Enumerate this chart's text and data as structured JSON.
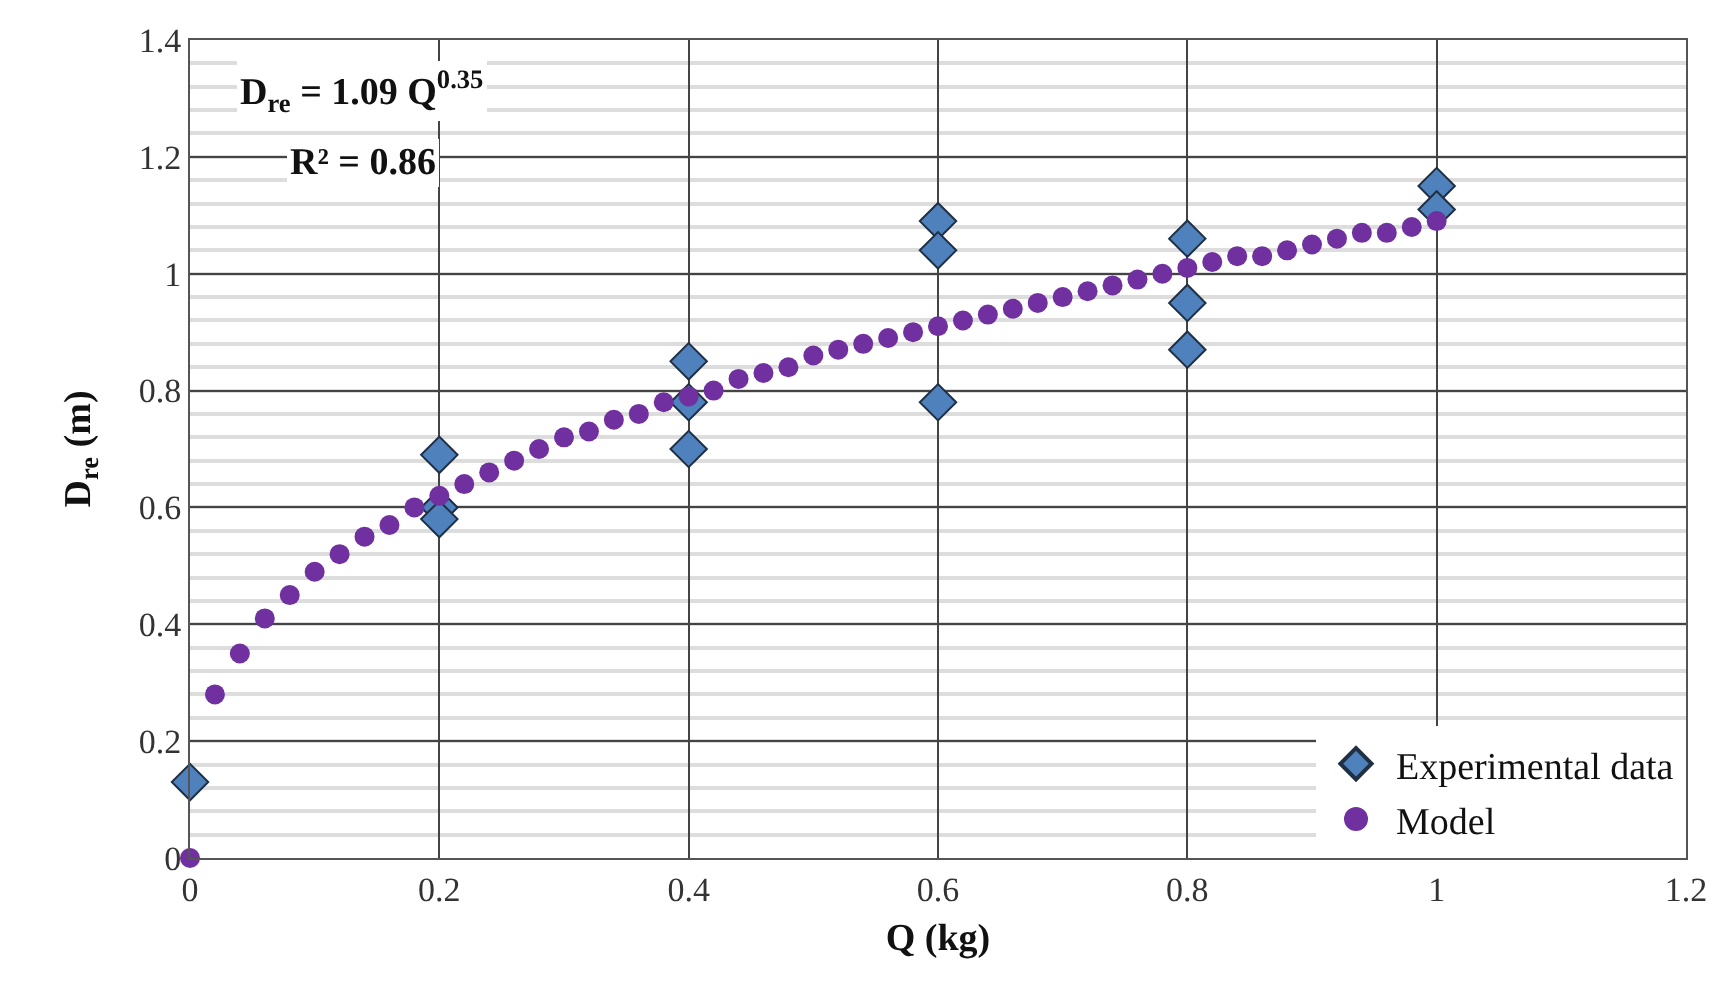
{
  "chart_data": {
    "type": "scatter",
    "xlabel": "Q (kg)",
    "ylabel": "D$_{re}$ (m)",
    "annotations": [
      "D$_{re}$ = 1.09 Q$^{0.35}$",
      "R² = 0.86"
    ],
    "xlim": [
      0,
      1.2
    ],
    "xticks": [
      0,
      0.2,
      0.4,
      0.6,
      0.8,
      1,
      1.2
    ],
    "ylim": [
      0,
      1.4
    ],
    "yticks": [
      0,
      0.2,
      0.4,
      0.6,
      0.8,
      1,
      1.2,
      1.4
    ],
    "grid": true,
    "legend": "bottom right",
    "series": [
      {
        "name": "Experimental data",
        "color": "#4f81bd",
        "marker": "diamond",
        "x": [
          0,
          0.2,
          0.2,
          0.2,
          0.4,
          0.4,
          0.4,
          0.6,
          0.6,
          0.6,
          0.8,
          0.8,
          0.8,
          1,
          1
        ],
        "values": [
          0.13,
          0.69,
          0.6,
          0.58,
          0.85,
          0.78,
          0.7,
          1.09,
          1.04,
          0.78,
          1.06,
          0.95,
          0.87,
          1.15,
          1.11
        ]
      },
      {
        "name": "Model",
        "color": "#7030a0",
        "marker": "circle",
        "x": [
          0,
          0.02,
          0.04,
          0.06,
          0.08,
          0.1,
          0.12,
          0.14,
          0.16,
          0.18,
          0.2,
          0.22,
          0.24,
          0.26,
          0.28,
          0.3,
          0.32,
          0.34,
          0.36,
          0.38,
          0.4,
          0.42,
          0.44,
          0.46,
          0.48,
          0.5,
          0.52,
          0.54,
          0.56,
          0.58,
          0.6,
          0.62,
          0.64,
          0.66,
          0.68,
          0.7,
          0.72,
          0.74,
          0.76,
          0.78,
          0.8,
          0.82,
          0.84,
          0.86,
          0.88,
          0.9,
          0.92,
          0.94,
          0.96,
          0.98,
          1
        ],
        "values": [
          0,
          0.28,
          0.35,
          0.41,
          0.45,
          0.49,
          0.52,
          0.55,
          0.57,
          0.6,
          0.62,
          0.64,
          0.66,
          0.68,
          0.7,
          0.72,
          0.73,
          0.75,
          0.76,
          0.78,
          0.79,
          0.8,
          0.82,
          0.83,
          0.84,
          0.86,
          0.87,
          0.88,
          0.89,
          0.9,
          0.91,
          0.92,
          0.93,
          0.94,
          0.95,
          0.96,
          0.97,
          0.98,
          0.99,
          1,
          1.01,
          1.02,
          1.03,
          1.03,
          1.04,
          1.05,
          1.06,
          1.07,
          1.07,
          1.08,
          1.09
        ]
      }
    ]
  }
}
